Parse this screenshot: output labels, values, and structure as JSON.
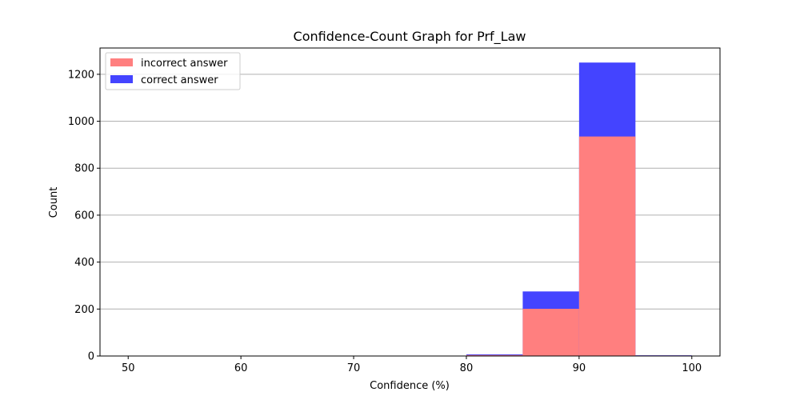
{
  "chart_data": {
    "type": "bar",
    "title": "Confidence-Count Graph for Prf_Law",
    "xlabel": "Confidence (%)",
    "ylabel": "Count",
    "xlim": [
      47.5,
      102.5
    ],
    "ylim": [
      0,
      1312
    ],
    "x_ticks": [
      "50",
      "60",
      "70",
      "80",
      "90",
      "100"
    ],
    "y_ticks": [
      "0",
      "200",
      "400",
      "600",
      "800",
      "1000",
      "1200"
    ],
    "grid": "horizontal",
    "legend_placement": "top-left",
    "bin_edges": [
      50,
      55,
      60,
      65,
      70,
      75,
      80,
      85,
      90,
      95,
      100
    ],
    "series": [
      {
        "name": "correct answer",
        "color": "#4444ff",
        "values": [
          0,
          0,
          0,
          0,
          0,
          0,
          7,
          275,
          1250,
          3
        ]
      },
      {
        "name": "incorrect answer",
        "color": "#ff7f7f",
        "values": [
          0,
          0,
          0,
          0,
          0,
          0,
          4,
          201,
          935,
          2
        ]
      }
    ]
  }
}
